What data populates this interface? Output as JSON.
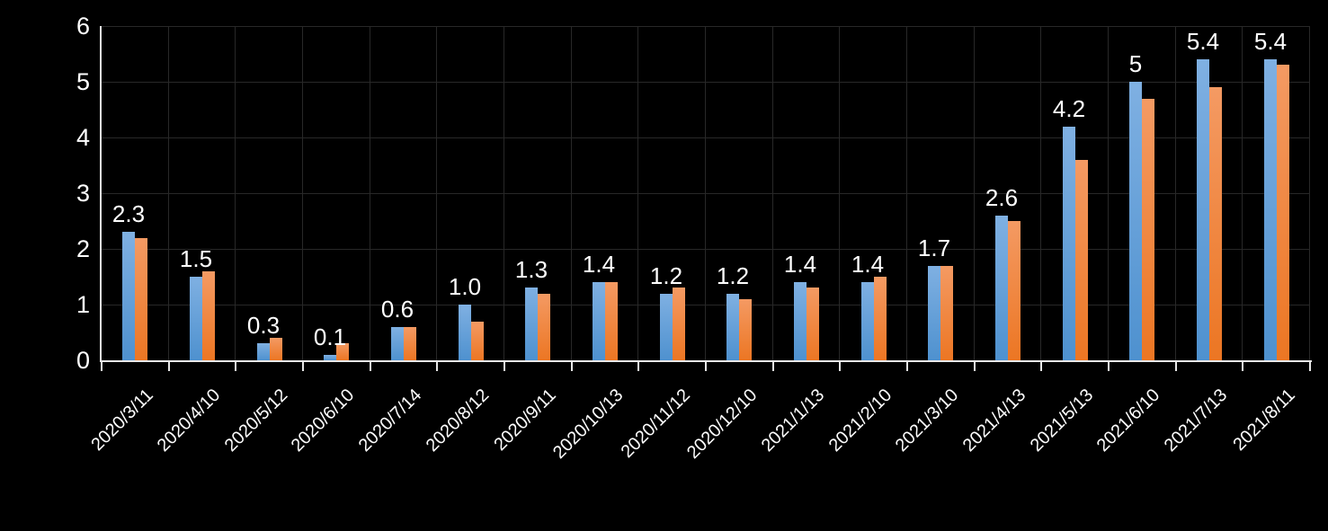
{
  "chart": {
    "background": "#000000",
    "text_color": "#ffffff",
    "axis_color": "#e8e8e8",
    "gridline_color": "#282828"
  },
  "chart_data": {
    "type": "bar",
    "title": "",
    "xlabel": "",
    "ylabel": "",
    "categories": [
      "2020/3/11",
      "2020/4/10",
      "2020/5/12",
      "2020/6/10",
      "2020/7/14",
      "2020/8/12",
      "2020/9/11",
      "2020/10/13",
      "2020/11/12",
      "2020/12/10",
      "2021/1/13",
      "2021/2/10",
      "2021/3/10",
      "2021/4/13",
      "2021/5/13",
      "2021/6/10",
      "2021/7/13",
      "2021/8/11"
    ],
    "series": [
      {
        "name": "blue-series",
        "color_top": "#7fb0e2",
        "color_bottom": "#4e91cf",
        "values": [
          2.3,
          1.5,
          0.3,
          0.1,
          0.6,
          1.0,
          1.3,
          1.4,
          1.2,
          1.2,
          1.4,
          1.4,
          1.7,
          2.6,
          4.2,
          5.0,
          5.4,
          5.4
        ],
        "data_labels": [
          "2.3",
          "1.5",
          "0.3",
          "0.1",
          "0.6",
          "1.0",
          "1.3",
          "1.4",
          "1.2",
          "1.2",
          "1.4",
          "1.4",
          "1.7",
          "2.6",
          "4.2",
          "5",
          "5.4",
          "5.4"
        ]
      },
      {
        "name": "orange-series",
        "color_top": "#f49a63",
        "color_bottom": "#ec7623",
        "values": [
          2.2,
          1.6,
          0.4,
          0.3,
          0.6,
          0.7,
          1.2,
          1.4,
          1.3,
          1.1,
          1.3,
          1.5,
          1.7,
          2.5,
          3.6,
          4.7,
          4.9,
          5.3
        ]
      }
    ],
    "ylim": [
      0,
      6
    ],
    "yticks": [
      "0",
      "1",
      "2",
      "3",
      "4",
      "5",
      "6"
    ],
    "grid": true,
    "legend": "none",
    "x_tick_rotation": -45
  }
}
